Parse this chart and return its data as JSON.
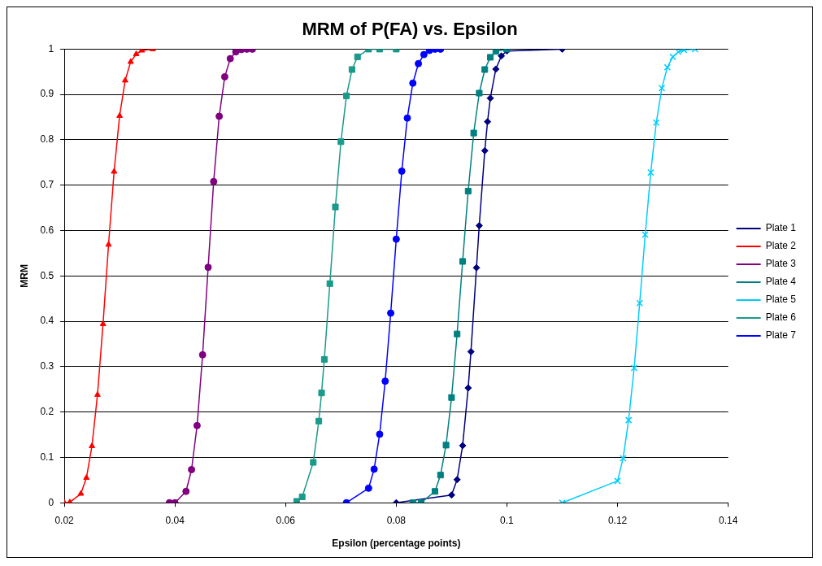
{
  "chart_data": {
    "type": "line",
    "title": "MRM of P(FA) vs. Epsilon",
    "xlabel": "Epsilon (percentage points)",
    "ylabel": "MRM",
    "xlim": [
      0.02,
      0.14
    ],
    "xticks": [
      0.02,
      0.04,
      0.06,
      0.08,
      0.1,
      0.12,
      0.14
    ],
    "ylim": [
      0,
      1
    ],
    "yticks": [
      0,
      0.1,
      0.2,
      0.3,
      0.4,
      0.5,
      0.6,
      0.7,
      0.8,
      0.9,
      1
    ],
    "grid": "y",
    "legend": "right",
    "line_style": "solid",
    "series": [
      {
        "name": "Plate 1",
        "color": "#000080",
        "marker": "diamond",
        "x": [
          0.08,
          0.09,
          0.091,
          0.092,
          0.093,
          0.0935,
          0.0945,
          0.095,
          0.096,
          0.0965,
          0.097,
          0.098,
          0.099,
          0.1,
          0.11
        ],
        "values": [
          0,
          0.017,
          0.051,
          0.126,
          0.253,
          0.333,
          0.518,
          0.611,
          0.776,
          0.84,
          0.892,
          0.956,
          0.985,
          0.996,
          1
        ]
      },
      {
        "name": "Plate 2",
        "color": "#ff0000",
        "marker": "triangle",
        "x": [
          0.02,
          0.021,
          0.023,
          0.024,
          0.025,
          0.026,
          0.027,
          0.028,
          0.029,
          0.03,
          0.031,
          0.032,
          0.033,
          0.034,
          0.036
        ],
        "values": [
          0,
          0.001,
          0.02,
          0.055,
          0.125,
          0.238,
          0.394,
          0.569,
          0.73,
          0.853,
          0.931,
          0.972,
          0.989,
          0.997,
          1
        ]
      },
      {
        "name": "Plate 3",
        "color": "#800080",
        "marker": "circle",
        "x": [
          0.039,
          0.04,
          0.042,
          0.043,
          0.044,
          0.045,
          0.046,
          0.047,
          0.048,
          0.049,
          0.05,
          0.051,
          0.052,
          0.053,
          0.054
        ],
        "values": [
          0,
          0,
          0.025,
          0.073,
          0.17,
          0.326,
          0.519,
          0.708,
          0.852,
          0.939,
          0.979,
          0.994,
          0.999,
          1,
          1
        ]
      },
      {
        "name": "Plate 4",
        "color": "#008080",
        "marker": "square",
        "x": [
          0.083,
          0.0845,
          0.087,
          0.088,
          0.089,
          0.09,
          0.091,
          0.092,
          0.093,
          0.094,
          0.095,
          0.096,
          0.097,
          0.098,
          0.1
        ],
        "values": [
          0,
          0,
          0.025,
          0.061,
          0.127,
          0.232,
          0.372,
          0.532,
          0.687,
          0.815,
          0.903,
          0.955,
          0.982,
          0.995,
          1
        ]
      },
      {
        "name": "Plate 5",
        "color": "#00ccff",
        "marker": "cross",
        "x": [
          0.11,
          0.12,
          0.121,
          0.122,
          0.123,
          0.124,
          0.125,
          0.126,
          0.127,
          0.128,
          0.129,
          0.13,
          0.131,
          0.132,
          0.134
        ],
        "values": [
          0,
          0.048,
          0.098,
          0.182,
          0.297,
          0.44,
          0.591,
          0.728,
          0.838,
          0.914,
          0.96,
          0.983,
          0.994,
          0.998,
          1
        ]
      },
      {
        "name": "Plate 6",
        "color": "#1a9a8a",
        "marker": "square",
        "x": [
          0.062,
          0.063,
          0.065,
          0.066,
          0.0665,
          0.067,
          0.068,
          0.069,
          0.07,
          0.071,
          0.072,
          0.073,
          0.075,
          0.077,
          0.08
        ],
        "values": [
          0.003,
          0.013,
          0.089,
          0.18,
          0.242,
          0.316,
          0.483,
          0.652,
          0.796,
          0.897,
          0.955,
          0.983,
          1,
          1,
          1
        ]
      },
      {
        "name": "Plate 7",
        "color": "#0000ff",
        "marker": "circle",
        "x": [
          0.071,
          0.075,
          0.076,
          0.077,
          0.078,
          0.079,
          0.08,
          0.081,
          0.082,
          0.083,
          0.084,
          0.085,
          0.086,
          0.087,
          0.088
        ],
        "values": [
          0,
          0.032,
          0.074,
          0.151,
          0.268,
          0.418,
          0.581,
          0.731,
          0.848,
          0.925,
          0.968,
          0.988,
          0.997,
          1,
          1
        ]
      }
    ]
  }
}
